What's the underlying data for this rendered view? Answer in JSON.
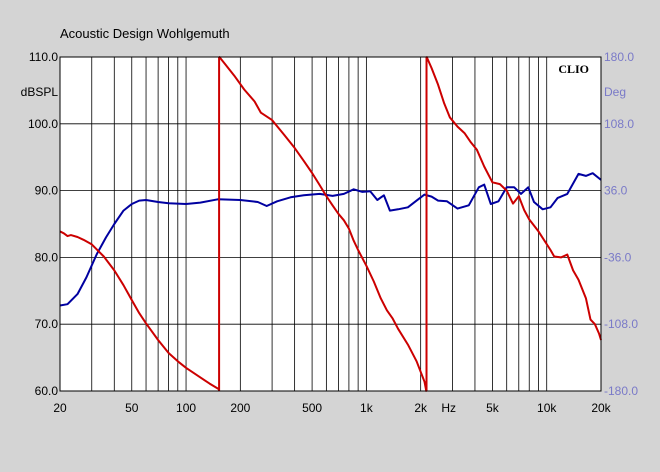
{
  "header": {
    "title": "Acoustic Design Wohlgemuth"
  },
  "chart_data": {
    "type": "line",
    "brand": "CLIO",
    "ylabel_left": "dBSPL",
    "ylabel_right": "Deg",
    "xlabel": "Hz",
    "x_scale": "log",
    "xlim": [
      20,
      20000
    ],
    "ylim": [
      60,
      110
    ],
    "ylim_right": [
      -180,
      180
    ],
    "grid": true,
    "y_ticks": [
      "110.0",
      "100.0",
      "90.0",
      "80.0",
      "70.0",
      "60.0"
    ],
    "y_tick_values": [
      110,
      100,
      90,
      80,
      70,
      60
    ],
    "y2_ticks": [
      "180.0",
      "108.0",
      "36.0",
      "-36.0",
      "-108.0",
      "-180.0"
    ],
    "y2_tick_values": [
      180,
      108,
      36,
      -36,
      -108,
      -180
    ],
    "x_ticks": [
      {
        "label": "20",
        "value": 20
      },
      {
        "label": "50",
        "value": 50
      },
      {
        "label": "100",
        "value": 100
      },
      {
        "label": "200",
        "value": 200
      },
      {
        "label": "500",
        "value": 500
      },
      {
        "label": "1k",
        "value": 1000
      },
      {
        "label": "2k",
        "value": 2000
      },
      {
        "label": "5k",
        "value": 5000
      },
      {
        "label": "10k",
        "value": 10000
      },
      {
        "label": "20k",
        "value": 20000
      }
    ],
    "colors": {
      "magnitude": "#0000a0",
      "phase": "#cc0000",
      "right_axis": "#7a7ac8",
      "plot_bg": "#ffffff",
      "frame_bg": "#d4d4d4"
    },
    "series": [
      {
        "axis": "left",
        "color": "#0000a0",
        "points": [
          [
            20,
            72.8
          ],
          [
            22,
            73.0
          ],
          [
            25,
            74.5
          ],
          [
            28,
            77.0
          ],
          [
            32,
            80.5
          ],
          [
            36,
            83.0
          ],
          [
            40,
            85.0
          ],
          [
            45,
            87.0
          ],
          [
            50,
            88.0
          ],
          [
            55,
            88.5
          ],
          [
            60,
            88.6
          ],
          [
            70,
            88.3
          ],
          [
            80,
            88.1
          ],
          [
            100,
            88.0
          ],
          [
            120,
            88.2
          ],
          [
            150,
            88.7
          ],
          [
            200,
            88.6
          ],
          [
            250,
            88.3
          ],
          [
            280,
            87.7
          ],
          [
            320,
            88.4
          ],
          [
            380,
            89.0
          ],
          [
            450,
            89.3
          ],
          [
            550,
            89.5
          ],
          [
            650,
            89.2
          ],
          [
            750,
            89.5
          ],
          [
            850,
            90.2
          ],
          [
            950,
            89.8
          ],
          [
            1050,
            89.9
          ],
          [
            1150,
            88.6
          ],
          [
            1250,
            89.3
          ],
          [
            1350,
            87.0
          ],
          [
            1500,
            87.2
          ],
          [
            1700,
            87.5
          ],
          [
            1900,
            88.5
          ],
          [
            2100,
            89.4
          ],
          [
            2300,
            89.1
          ],
          [
            2500,
            88.5
          ],
          [
            2800,
            88.4
          ],
          [
            3200,
            87.3
          ],
          [
            3700,
            87.8
          ],
          [
            4200,
            90.5
          ],
          [
            4500,
            90.9
          ],
          [
            4900,
            88.0
          ],
          [
            5400,
            88.4
          ],
          [
            6000,
            90.5
          ],
          [
            6600,
            90.5
          ],
          [
            7200,
            89.5
          ],
          [
            7900,
            90.5
          ],
          [
            8500,
            88.3
          ],
          [
            9500,
            87.2
          ],
          [
            10500,
            87.5
          ],
          [
            11500,
            88.9
          ],
          [
            13000,
            89.5
          ],
          [
            15000,
            92.5
          ],
          [
            16500,
            92.2
          ],
          [
            18000,
            92.6
          ],
          [
            20000,
            91.6
          ]
        ]
      },
      {
        "axis": "right",
        "color": "#cc0000",
        "points": [
          [
            20,
            -8
          ],
          [
            21,
            -10
          ],
          [
            22,
            -13
          ],
          [
            23,
            -12
          ],
          [
            25,
            -14
          ],
          [
            27,
            -17
          ],
          [
            30,
            -22
          ],
          [
            35,
            -35
          ],
          [
            40,
            -50
          ],
          [
            45,
            -66
          ],
          [
            50,
            -82
          ],
          [
            55,
            -96
          ],
          [
            60,
            -107
          ],
          [
            70,
            -125
          ],
          [
            80,
            -139
          ],
          [
            90,
            -148
          ],
          [
            100,
            -155
          ],
          [
            115,
            -163
          ],
          [
            135,
            -172
          ],
          [
            152,
            -178
          ],
          [
            153,
            180
          ],
          [
            165,
            172
          ],
          [
            185,
            160
          ],
          [
            210,
            145
          ],
          [
            240,
            132
          ],
          [
            260,
            120
          ],
          [
            300,
            112
          ],
          [
            350,
            96
          ],
          [
            400,
            82
          ],
          [
            450,
            68
          ],
          [
            500,
            55
          ],
          [
            550,
            42
          ],
          [
            600,
            30
          ],
          [
            650,
            20
          ],
          [
            700,
            11
          ],
          [
            750,
            4
          ],
          [
            800,
            -5
          ],
          [
            850,
            -18
          ],
          [
            900,
            -28
          ],
          [
            1000,
            -45
          ],
          [
            1100,
            -62
          ],
          [
            1200,
            -80
          ],
          [
            1300,
            -93
          ],
          [
            1400,
            -102
          ],
          [
            1500,
            -113
          ],
          [
            1700,
            -130
          ],
          [
            1900,
            -148
          ],
          [
            2100,
            -170
          ],
          [
            2150,
            -180
          ],
          [
            2160,
            180
          ],
          [
            2300,
            168
          ],
          [
            2500,
            150
          ],
          [
            2700,
            130
          ],
          [
            2900,
            115
          ],
          [
            3200,
            105
          ],
          [
            3500,
            98
          ],
          [
            3800,
            88
          ],
          [
            4100,
            80
          ],
          [
            4500,
            62
          ],
          [
            5000,
            45
          ],
          [
            5500,
            43
          ],
          [
            6000,
            36
          ],
          [
            6500,
            22
          ],
          [
            7000,
            30
          ],
          [
            7500,
            15
          ],
          [
            8000,
            5
          ],
          [
            9000,
            -8
          ],
          [
            9500,
            -15
          ],
          [
            10500,
            -28
          ],
          [
            11000,
            -35
          ],
          [
            12000,
            -36
          ],
          [
            13000,
            -33
          ],
          [
            14000,
            -50
          ],
          [
            15000,
            -60
          ],
          [
            16500,
            -80
          ],
          [
            17500,
            -103
          ],
          [
            18500,
            -108
          ],
          [
            19500,
            -118
          ],
          [
            20000,
            -125
          ]
        ]
      }
    ]
  }
}
